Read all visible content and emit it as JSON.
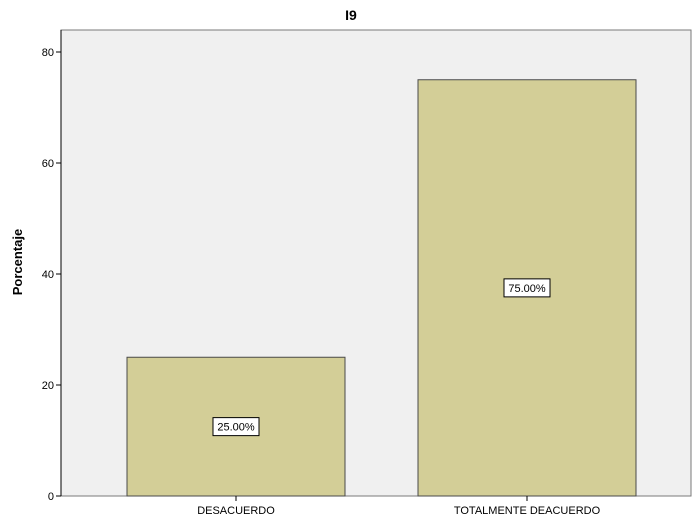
{
  "chart_data": {
    "type": "bar",
    "title": "I9",
    "xlabel": "",
    "ylabel": "Porcentaje",
    "ylim": [
      0,
      80
    ],
    "yticks": [
      "0",
      "20",
      "40",
      "60",
      "80"
    ],
    "categories": [
      "DESACUERDO",
      "TOTALMENTE DEACUERDO"
    ],
    "values": [
      25,
      75
    ],
    "data_labels": [
      "25.00%",
      "75.00%"
    ],
    "grid": false,
    "legend": "none",
    "colors": {
      "plot_background": "#f0f0f0",
      "bar_fill": "#d3ce97",
      "bar_stroke": "#4a4a4a",
      "label_box": "#ffffff"
    }
  }
}
